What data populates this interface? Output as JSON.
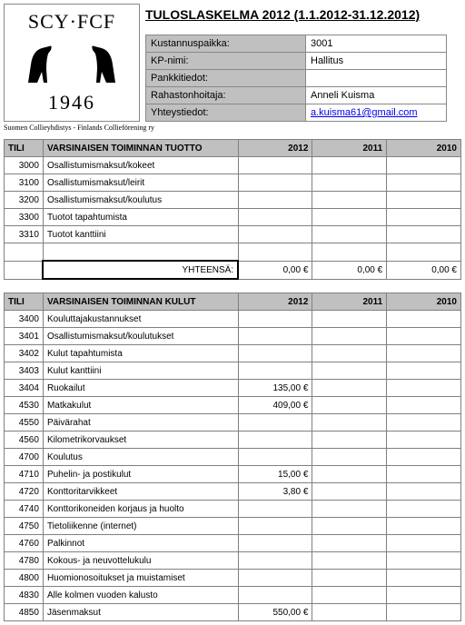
{
  "logo": {
    "line1": "SCY·FCF",
    "year": "1946"
  },
  "title": "TULOSLASKELMA 2012 (1.1.2012-31.12.2012)",
  "subtitle": "Suomen Collieyhdistys - Finlands Collieförening ry",
  "info": [
    {
      "label": "Kustannuspaikka:",
      "value": "3001"
    },
    {
      "label": "KP-nimi:",
      "value": "Hallitus"
    },
    {
      "label": "Pankkitiedot:",
      "value": ""
    },
    {
      "label": "Rahastonhoitaja:",
      "value": "Anneli Kuisma"
    },
    {
      "label": "Yhteystiedot:",
      "value": "a.kuisma61@gmail.com",
      "link": true
    }
  ],
  "columns": {
    "tili": "TILI",
    "y2012": "2012",
    "y2011": "2011",
    "y2010": "2010"
  },
  "section1": {
    "header": "VARSINAISEN TOIMINNAN TUOTTO",
    "rows": [
      {
        "code": "3000",
        "desc": "Osallistumismaksut/kokeet"
      },
      {
        "code": "3100",
        "desc": "Osallistumismaksut/leirit"
      },
      {
        "code": "3200",
        "desc": "Osallistumismaksut/koulutus"
      },
      {
        "code": "3300",
        "desc": "Tuotot tapahtumista"
      },
      {
        "code": "3310",
        "desc": "Tuotot kanttiini"
      }
    ],
    "total_label": "YHTEENSÄ:",
    "totals": {
      "y2012": "0,00 €",
      "y2011": "0,00 €",
      "y2010": "0,00 €"
    }
  },
  "section2": {
    "header": "VARSINAISEN TOIMINNAN KULUT",
    "rows": [
      {
        "code": "3400",
        "desc": "Kouluttajakustannukset"
      },
      {
        "code": "3401",
        "desc": "Osallistumismaksut/koulutukset"
      },
      {
        "code": "3402",
        "desc": "Kulut tapahtumista"
      },
      {
        "code": "3403",
        "desc": "Kulut kanttiini"
      },
      {
        "code": "3404",
        "desc": "Ruokailut",
        "y2012": "135,00 €"
      },
      {
        "code": "4530",
        "desc": "Matkakulut",
        "y2012": "409,00 €"
      },
      {
        "code": "4550",
        "desc": "Päivärahat"
      },
      {
        "code": "4560",
        "desc": "Kilometrikorvaukset"
      },
      {
        "code": "4700",
        "desc": "Koulutus"
      },
      {
        "code": "4710",
        "desc": "Puhelin- ja postikulut",
        "y2012": "15,00 €"
      },
      {
        "code": "4720",
        "desc": "Konttoritarvikkeet",
        "y2012": "3,80 €"
      },
      {
        "code": "4740",
        "desc": "Konttorikoneiden korjaus ja huolto"
      },
      {
        "code": "4750",
        "desc": "Tietoliikenne (internet)"
      },
      {
        "code": "4760",
        "desc": "Palkinnot"
      },
      {
        "code": "4780",
        "desc": "Kokous- ja neuvottelukulu"
      },
      {
        "code": "4800",
        "desc": "Huomionosoitukset ja muistamiset"
      },
      {
        "code": "4830",
        "desc": "Alle kolmen vuoden kalusto"
      },
      {
        "code": "4850",
        "desc": "Jäsenmaksut",
        "y2012": "550,00 €"
      }
    ]
  }
}
